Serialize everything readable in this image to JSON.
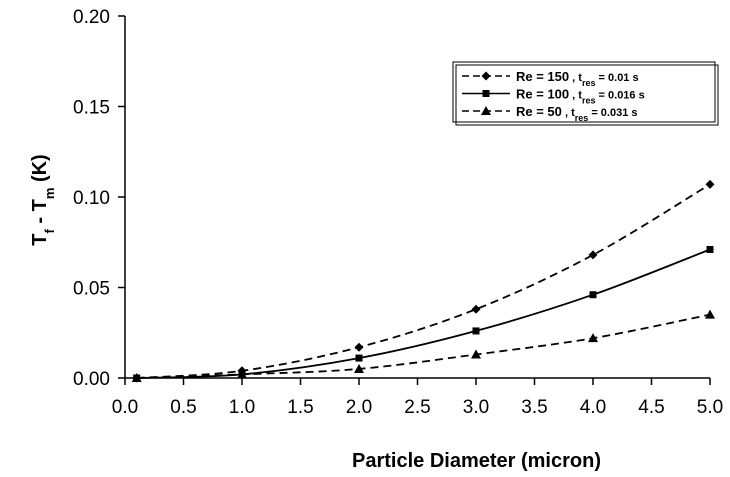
{
  "chart_data": {
    "type": "line",
    "xlabel": "Particle Diameter (micron)",
    "ylabel": {
      "a": "T",
      "a_sub": "f",
      "mid": " - T",
      "b_sub": "m",
      "unit": " (K)"
    },
    "xlim": [
      0.0,
      5.0
    ],
    "ylim": [
      0.0,
      0.2
    ],
    "xticks": [
      "0.0",
      "0.5",
      "1.0",
      "1.5",
      "2.0",
      "2.5",
      "3.0",
      "3.5",
      "4.0",
      "4.5",
      "5.0"
    ],
    "yticks": [
      "0.00",
      "0.05",
      "0.10",
      "0.15",
      "0.20"
    ],
    "grid": false,
    "legend_position": "top-right",
    "series": [
      {
        "key": "re150",
        "legend": {
          "main": "Re = 150",
          "sep": " , t",
          "sub": "res",
          "val": " =  0.01 s"
        },
        "marker": "diamond",
        "dash": true,
        "x": [
          0.1,
          1.0,
          2.0,
          3.0,
          4.0,
          5.0
        ],
        "y": [
          0.0,
          0.004,
          0.017,
          0.038,
          0.068,
          0.107
        ]
      },
      {
        "key": "re100",
        "legend": {
          "main": "Re = 100",
          "sep": " , t",
          "sub": "res",
          "val": " =   0.016 s"
        },
        "marker": "square",
        "dash": false,
        "x": [
          0.1,
          1.0,
          2.0,
          3.0,
          4.0,
          5.0
        ],
        "y": [
          0.0,
          0.002,
          0.011,
          0.026,
          0.046,
          0.071
        ]
      },
      {
        "key": "re50",
        "legend": {
          "main": "Re = 50",
          "sep": " , t",
          "sub": "res",
          "val": " = 0.031 s"
        },
        "marker": "triangle",
        "dash": true,
        "x": [
          0.1,
          1.0,
          2.0,
          3.0,
          4.0,
          5.0
        ],
        "y": [
          0.0,
          0.002,
          0.005,
          0.013,
          0.022,
          0.035
        ]
      }
    ]
  }
}
